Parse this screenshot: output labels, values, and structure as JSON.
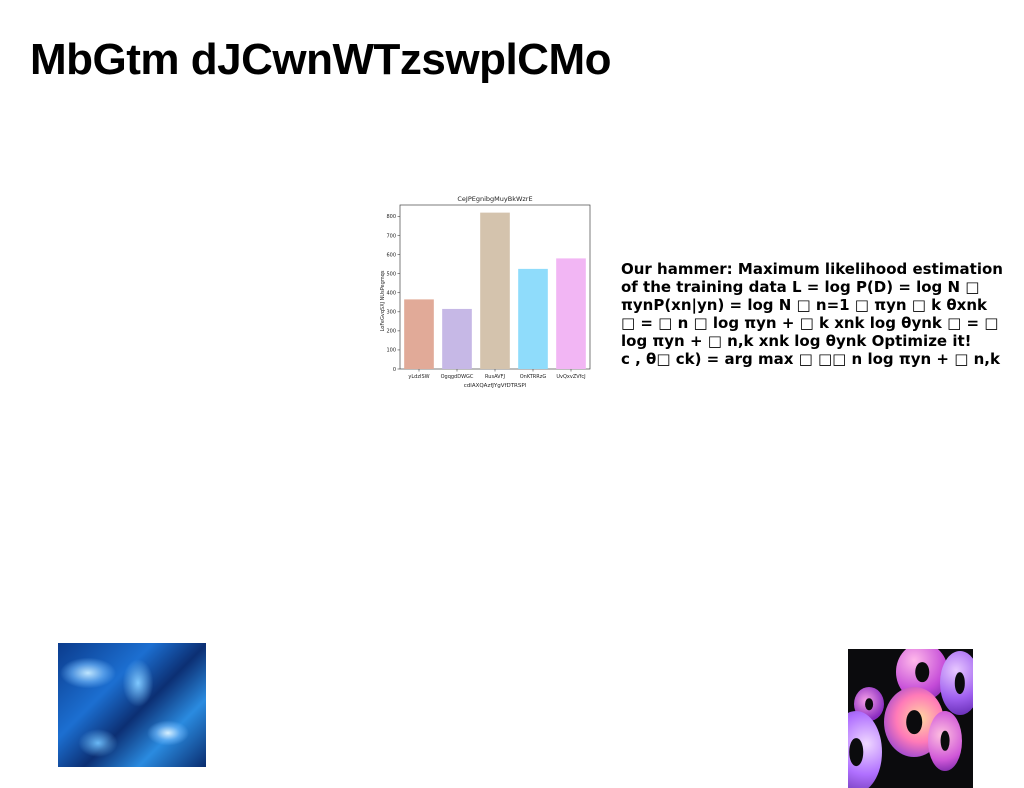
{
  "slide": {
    "title": "MbGtm dJCwnWTzswplCMo",
    "body_lines": [
      "Our hammer: Maximum likelihood estimation",
      "of the training data L = log P(D) = log N □",
      "πynP(xn|yn) = log N □ n=1 □ πyn □ k θxnk",
      "□ = □ n □ log πyn + □ k xnk log θynk □ = □",
      "log πyn + □ n,k xnk log θynk Optimize it!",
      "c , θ□ ck) = arg max □ □□ n log πyn + □ n,k"
    ]
  },
  "chart_data": {
    "type": "bar",
    "title": "CeJPEgnibgMuyBkWzrE",
    "xlabel": "cdlAXQAzfJYgVfDTRSPl",
    "ylabel": "LoFeGvqSXJ NUsPegmqs",
    "categories": [
      "yLdzISW",
      "OgqgdDWGC",
      "RusAVFJ",
      "OnKTRRzG",
      "UvQxvZVfcJ"
    ],
    "values": [
      365,
      315,
      820,
      525,
      580
    ],
    "colors": [
      "#e1aa98",
      "#c6b8e6",
      "#d4c3ad",
      "#8fdcfb",
      "#f2b6f4"
    ],
    "ylim": [
      0,
      860
    ],
    "yticks": [
      0,
      100,
      200,
      300,
      400,
      500,
      600,
      700,
      800
    ],
    "grid": false
  },
  "images": {
    "left_photo_icon": "blue-texture-photo",
    "right_photo_icon": "colorful-discs-photo"
  }
}
